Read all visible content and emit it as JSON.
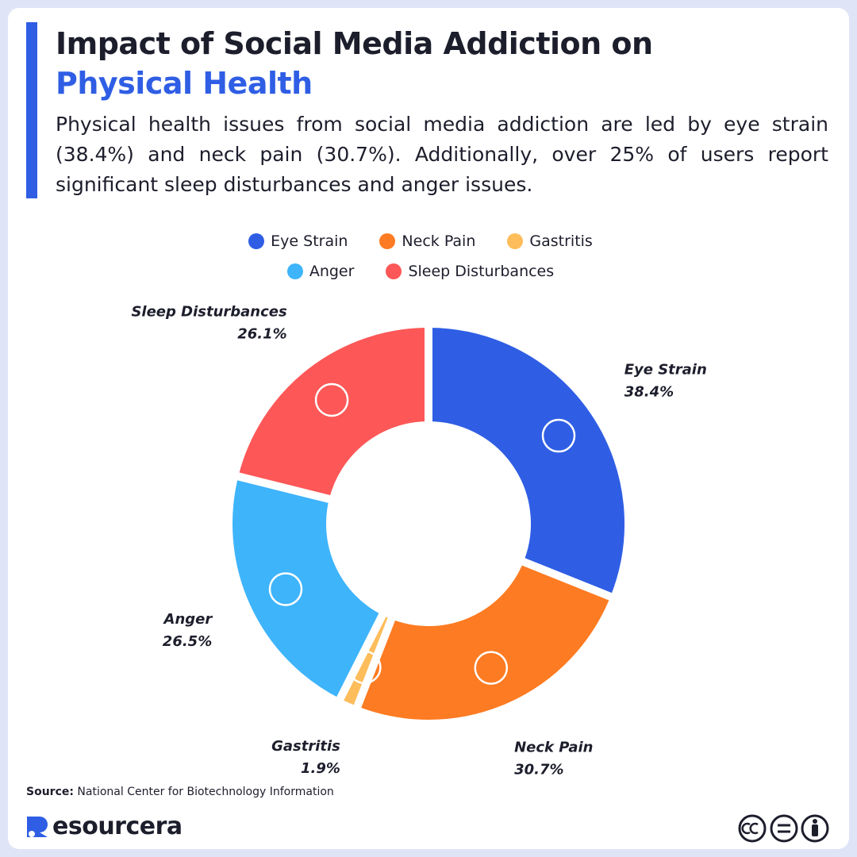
{
  "chart_data": {
    "type": "donut",
    "title": "Impact of Social Media Addiction on",
    "title_highlight": "Physical Health",
    "subtitle": "Physical health issues from social media addiction are led by eye strain (38.4%) and neck pain (30.7%). Additionally, over 25% of users report significant sleep disturbances and anger issues.",
    "categories": [
      "Eye Strain",
      "Neck Pain",
      "Gastritis",
      "Anger",
      "Sleep Disturbances"
    ],
    "values": [
      38.4,
      30.7,
      1.9,
      26.5,
      26.1
    ],
    "value_labels": [
      "38.4%",
      "30.7%",
      "1.9%",
      "26.5%",
      "26.1%"
    ],
    "colors": [
      "#2f5ee5",
      "#fd7b22",
      "#fdbd5b",
      "#3eb4fb",
      "#fd5757"
    ],
    "source_label": "Source:",
    "source": "National Center for Biotechnology Information",
    "brand": "esourcera"
  }
}
